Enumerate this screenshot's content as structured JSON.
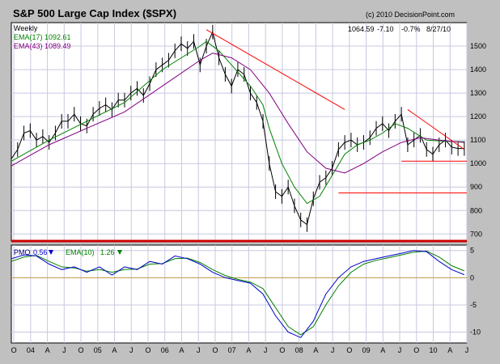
{
  "title": "S&P 500 Large Cap Index ($SPX)",
  "copyright": "(c) 2010 DecisionPoint.com",
  "period": "Weekly",
  "readout": {
    "price": "1064.59",
    "change": "-7.10",
    "pct": "-0.7%",
    "date": "8/27/10"
  },
  "legend_price": [
    {
      "label": "EMA(17) 1092.61",
      "color": "#008000"
    },
    {
      "label": "EMA(43) 1089.49",
      "color": "#800080"
    }
  ],
  "legend_pmo": [
    {
      "label": "PMO",
      "color": "#000080"
    },
    {
      "label": "0.56",
      "color": "#0000cc"
    },
    {
      "label": "EMA(10)",
      "color": "#008000"
    },
    {
      "label": "1.26",
      "color": "#008000"
    }
  ],
  "colors": {
    "frame_bg": "#c0c0c0",
    "grid": "#c8c8e0",
    "price": "#000000",
    "ema17": "#008000",
    "ema43": "#800080",
    "pmo": "#0000cc",
    "pmo_signal": "#008000",
    "trendline": "#ff0000",
    "zero_line": "#c8a040",
    "separator": "#cc0000"
  },
  "chart_data": {
    "type": "line",
    "x_tick_labels": [
      "O",
      "04",
      "A",
      "J",
      "O",
      "05",
      "A",
      "J",
      "O",
      "06",
      "A",
      "J",
      "O",
      "07",
      "A",
      "J",
      "O",
      "08",
      "A",
      "J",
      "O",
      "09",
      "A",
      "J",
      "O",
      "10",
      "A",
      "J"
    ],
    "price_panel": {
      "y_ticks": [
        700,
        800,
        900,
        1000,
        1100,
        1200,
        1300,
        1400,
        1500
      ],
      "ylim": [
        670,
        1600
      ],
      "series": [
        {
          "name": "$SPX",
          "x": [
            0,
            5,
            10,
            15,
            20,
            25,
            30,
            35,
            40,
            45,
            50,
            55,
            60,
            65,
            70,
            75,
            80,
            85,
            90,
            95,
            100,
            105,
            110,
            115,
            120,
            125,
            130,
            135,
            140,
            145,
            150,
            155,
            160,
            165,
            170,
            175,
            180,
            185,
            190,
            195,
            200,
            205,
            210,
            215,
            220,
            225,
            230,
            235,
            240,
            245,
            250,
            255,
            260,
            265,
            270,
            275,
            280,
            285,
            290,
            295,
            300,
            305,
            310,
            315,
            320,
            325,
            330,
            335,
            340,
            345,
            350,
            355,
            360
          ],
          "values": [
            1020,
            1060,
            1130,
            1140,
            1100,
            1115,
            1090,
            1130,
            1180,
            1180,
            1210,
            1170,
            1160,
            1210,
            1235,
            1250,
            1230,
            1270,
            1270,
            1300,
            1320,
            1290,
            1340,
            1400,
            1420,
            1440,
            1480,
            1510,
            1490,
            1520,
            1420,
            1500,
            1560,
            1450,
            1380,
            1330,
            1400,
            1380,
            1300,
            1260,
            1180,
            1000,
            880,
            860,
            900,
            820,
            760,
            740,
            850,
            920,
            940,
            980,
            1060,
            1090,
            1100,
            1080,
            1090,
            1110,
            1150,
            1170,
            1140,
            1180,
            1210,
            1080,
            1100,
            1120,
            1060,
            1040,
            1080,
            1100,
            1070,
            1064,
            1064
          ]
        },
        {
          "name": "EMA(17)",
          "x": [
            0,
            30,
            60,
            90,
            120,
            150,
            155,
            165,
            175,
            190,
            200,
            205,
            215,
            225,
            235,
            245,
            255,
            265,
            275,
            285,
            295,
            305,
            315,
            330,
            345,
            360
          ],
          "values": [
            1010,
            1100,
            1180,
            1260,
            1400,
            1500,
            1520,
            1480,
            1420,
            1330,
            1250,
            1150,
            1000,
            900,
            830,
            860,
            950,
            1040,
            1080,
            1100,
            1130,
            1170,
            1150,
            1100,
            1095,
            1093
          ]
        },
        {
          "name": "EMA(43)",
          "x": [
            0,
            30,
            60,
            90,
            120,
            150,
            160,
            175,
            190,
            205,
            220,
            235,
            250,
            265,
            280,
            295,
            310,
            325,
            340,
            360
          ],
          "values": [
            990,
            1080,
            1150,
            1220,
            1330,
            1440,
            1470,
            1450,
            1400,
            1300,
            1170,
            1050,
            980,
            960,
            1000,
            1050,
            1090,
            1110,
            1100,
            1090
          ]
        }
      ],
      "annotations": [
        {
          "type": "trendline",
          "x": [
            155,
            265
          ],
          "y": [
            1570,
            1230
          ]
        },
        {
          "type": "trendline",
          "x": [
            315,
            360
          ],
          "y": [
            1230,
            1060
          ]
        },
        {
          "type": "horizontal",
          "x": [
            260,
            362
          ],
          "y": 875
        },
        {
          "type": "horizontal",
          "x": [
            310,
            362
          ],
          "y": 1010
        }
      ]
    },
    "pmo_panel": {
      "y_ticks": [
        -10,
        -5,
        0,
        5
      ],
      "ylim": [
        -12,
        6
      ],
      "zero_line": 0,
      "series": [
        {
          "name": "PMO",
          "x": [
            0,
            10,
            20,
            30,
            40,
            50,
            60,
            70,
            80,
            90,
            100,
            110,
            120,
            130,
            140,
            150,
            160,
            170,
            180,
            190,
            200,
            210,
            220,
            230,
            240,
            250,
            260,
            270,
            280,
            290,
            300,
            310,
            320,
            330,
            340,
            350,
            360
          ],
          "values": [
            3.5,
            4.2,
            4.0,
            2.5,
            1.5,
            2.0,
            1.0,
            2.0,
            0.5,
            2.0,
            1.5,
            3.0,
            2.5,
            4.0,
            3.5,
            2.5,
            1.0,
            0,
            -0.5,
            -1.0,
            -3.0,
            -7.0,
            -10.0,
            -11.0,
            -8.0,
            -3.0,
            0,
            2.0,
            3.0,
            3.5,
            4.0,
            4.5,
            5.0,
            4.8,
            3.0,
            1.5,
            0.56
          ]
        },
        {
          "name": "EMA(10)",
          "x": [
            0,
            10,
            20,
            30,
            40,
            50,
            60,
            70,
            80,
            90,
            100,
            110,
            120,
            130,
            140,
            150,
            160,
            170,
            180,
            190,
            200,
            210,
            220,
            230,
            240,
            250,
            260,
            270,
            280,
            290,
            300,
            310,
            320,
            330,
            340,
            350,
            360
          ],
          "values": [
            3.0,
            3.8,
            4.1,
            3.0,
            2.0,
            1.8,
            1.2,
            1.5,
            1.0,
            1.5,
            1.6,
            2.5,
            2.6,
            3.5,
            3.6,
            2.8,
            1.5,
            0.4,
            -0.3,
            -0.8,
            -2.0,
            -5.5,
            -9.0,
            -10.5,
            -9.0,
            -5.0,
            -1.5,
            1.0,
            2.5,
            3.2,
            3.7,
            4.2,
            4.7,
            4.9,
            3.8,
            2.2,
            1.26
          ]
        }
      ]
    }
  }
}
